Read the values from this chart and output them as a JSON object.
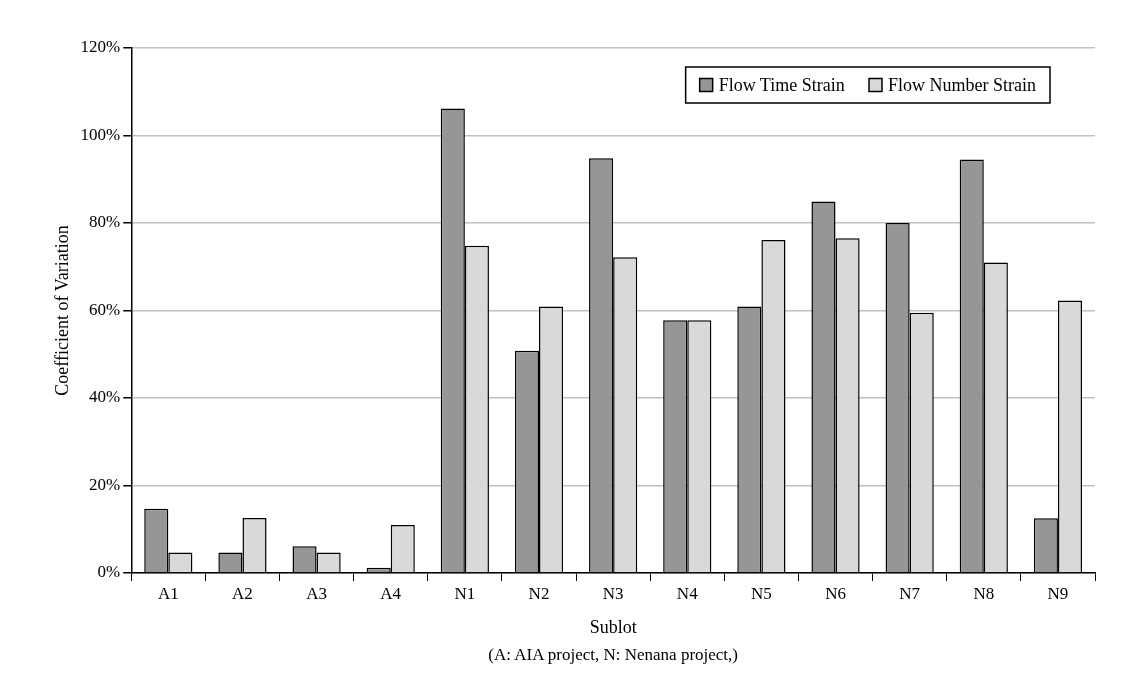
{
  "chart_data": {
    "type": "bar",
    "xlabel": "Sublot",
    "ylabel": "Coefficient of Variation",
    "annotations": [
      "(A: AIA project, N: Nenana project,)"
    ],
    "categories": [
      "A1",
      "A2",
      "A3",
      "A4",
      "N1",
      "N2",
      "N3",
      "N4",
      "N5",
      "N6",
      "N7",
      "N8",
      "N9"
    ],
    "series": [
      {
        "name": "Flow Time Strain",
        "color": "#969696",
        "values": [
          14.7,
          4.7,
          6.1,
          1.2,
          106.2,
          50.8,
          94.8,
          57.8,
          60.9,
          84.9,
          80.0,
          94.5,
          12.5
        ]
      },
      {
        "name": "Flow Number Strain",
        "color": "#d9d9d9",
        "values": [
          4.7,
          12.6,
          4.7,
          11.0,
          74.8,
          60.9,
          72.2,
          57.8,
          76.1,
          76.5,
          59.5,
          71.0,
          62.3
        ]
      }
    ],
    "ylim": [
      0,
      120
    ],
    "yticks": [
      {
        "value": 0,
        "label": "0%"
      },
      {
        "value": 20,
        "label": "20%"
      },
      {
        "value": 40,
        "label": "40%"
      },
      {
        "value": 60,
        "label": "60%"
      },
      {
        "value": 80,
        "label": "80%"
      },
      {
        "value": 100,
        "label": "100%"
      },
      {
        "value": 120,
        "label": "120%"
      }
    ],
    "grid": "y",
    "legend": "top right"
  }
}
